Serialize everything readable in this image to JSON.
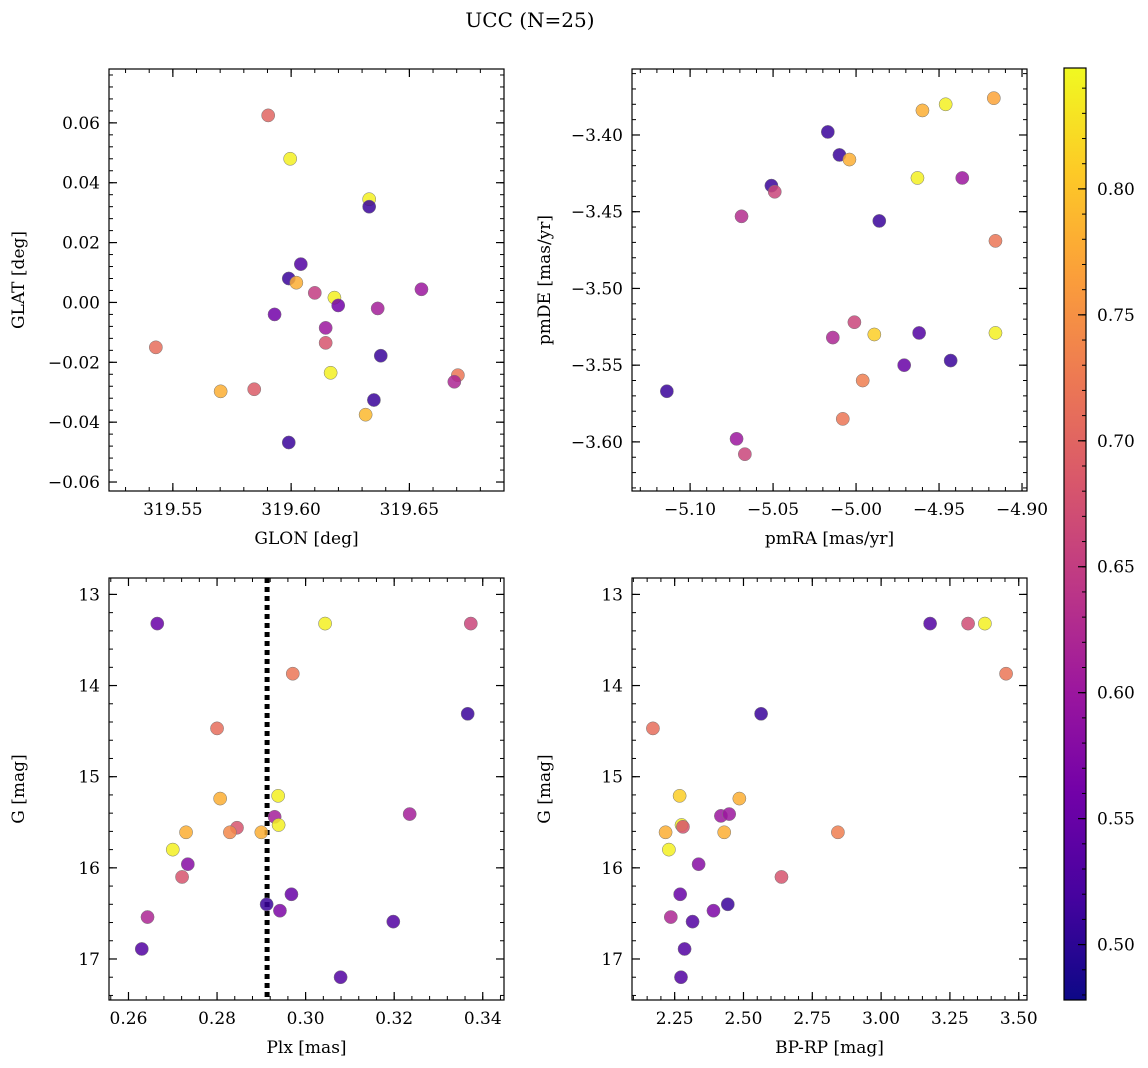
{
  "title": "UCC (N=25)",
  "colorbar": {
    "range": [
      0.478,
      0.848
    ],
    "ticks": [
      0.5,
      0.55,
      0.6,
      0.65,
      0.7,
      0.75,
      0.8
    ],
    "tick_labels": [
      "0.50",
      "0.55",
      "0.60",
      "0.65",
      "0.70",
      "0.75",
      "0.80"
    ],
    "colormap": "plasma",
    "colors": [
      "#0d0887",
      "#46039f",
      "#7201a8",
      "#9c179e",
      "#bd3786",
      "#d8576b",
      "#ed7953",
      "#fb9f3a",
      "#fdca26",
      "#f0f921"
    ]
  },
  "chart_data": [
    {
      "type": "scatter",
      "xlabel": "GLON [deg]",
      "ylabel": "GLAT [deg]",
      "xlim": [
        319.523,
        319.69
      ],
      "ylim": [
        -0.063,
        0.078
      ],
      "x_ticks": [
        319.55,
        319.6,
        319.65
      ],
      "x_tick_labels": [
        "319.55",
        "319.60",
        "319.65"
      ],
      "y_ticks": [
        -0.06,
        -0.04,
        -0.02,
        0.0,
        0.02,
        0.04,
        0.06
      ],
      "y_tick_labels": [
        "−0.06",
        "−0.04",
        "−0.02",
        "0.00",
        "0.02",
        "0.04",
        "0.06"
      ],
      "points": [
        {
          "x": 319.5903,
          "y": 0.0625,
          "c": 0.7
        },
        {
          "x": 319.5996,
          "y": 0.048,
          "c": 0.84
        },
        {
          "x": 319.633,
          "y": 0.0345,
          "c": 0.84
        },
        {
          "x": 319.633,
          "y": 0.032,
          "c": 0.51
        },
        {
          "x": 319.6041,
          "y": 0.0128,
          "c": 0.53
        },
        {
          "x": 319.599,
          "y": 0.008,
          "c": 0.51
        },
        {
          "x": 319.6022,
          "y": 0.0066,
          "c": 0.78
        },
        {
          "x": 319.61,
          "y": 0.0032,
          "c": 0.65
        },
        {
          "x": 319.6183,
          "y": 0.0016,
          "c": 0.84
        },
        {
          "x": 319.6551,
          "y": 0.0044,
          "c": 0.6
        },
        {
          "x": 319.6199,
          "y": -0.001,
          "c": 0.56
        },
        {
          "x": 319.6366,
          "y": -0.002,
          "c": 0.61
        },
        {
          "x": 319.593,
          "y": -0.004,
          "c": 0.56
        },
        {
          "x": 319.6146,
          "y": -0.0085,
          "c": 0.6
        },
        {
          "x": 319.6146,
          "y": -0.0135,
          "c": 0.68
        },
        {
          "x": 319.5428,
          "y": -0.015,
          "c": 0.71
        },
        {
          "x": 319.6379,
          "y": -0.0178,
          "c": 0.51
        },
        {
          "x": 319.6167,
          "y": -0.0235,
          "c": 0.84
        },
        {
          "x": 319.6705,
          "y": -0.0243,
          "c": 0.72
        },
        {
          "x": 319.669,
          "y": -0.0265,
          "c": 0.62
        },
        {
          "x": 319.5844,
          "y": -0.029,
          "c": 0.69
        },
        {
          "x": 319.5702,
          "y": -0.0297,
          "c": 0.78
        },
        {
          "x": 319.635,
          "y": -0.0326,
          "c": 0.51
        },
        {
          "x": 319.6315,
          "y": -0.0375,
          "c": 0.79
        },
        {
          "x": 319.599,
          "y": -0.0468,
          "c": 0.51
        }
      ]
    },
    {
      "type": "scatter",
      "xlabel": "pmRA [mas/yr]",
      "ylabel": "pmDE [mas/yr]",
      "xlim": [
        -5.135,
        -4.897
      ],
      "ylim": [
        -3.632,
        -3.357
      ],
      "x_ticks": [
        -5.1,
        -5.05,
        -5.0,
        -4.95,
        -4.9
      ],
      "x_tick_labels": [
        "−5.10",
        "−5.05",
        "−5.00",
        "−4.95",
        "−4.90"
      ],
      "y_ticks": [
        -3.6,
        -3.55,
        -3.5,
        -3.45,
        -3.4
      ],
      "y_tick_labels": [
        "−3.60",
        "−3.55",
        "−3.50",
        "−3.45",
        "−3.40"
      ],
      "points": [
        {
          "x": -4.917,
          "y": -3.376,
          "c": 0.77
        },
        {
          "x": -4.946,
          "y": -3.38,
          "c": 0.84
        },
        {
          "x": -4.96,
          "y": -3.384,
          "c": 0.78
        },
        {
          "x": -5.017,
          "y": -3.398,
          "c": 0.51
        },
        {
          "x": -5.01,
          "y": -3.413,
          "c": 0.51
        },
        {
          "x": -5.004,
          "y": -3.416,
          "c": 0.78
        },
        {
          "x": -4.963,
          "y": -3.428,
          "c": 0.84
        },
        {
          "x": -4.936,
          "y": -3.428,
          "c": 0.6
        },
        {
          "x": -5.051,
          "y": -3.433,
          "c": 0.51
        },
        {
          "x": -5.049,
          "y": -3.437,
          "c": 0.66
        },
        {
          "x": -5.069,
          "y": -3.453,
          "c": 0.63
        },
        {
          "x": -4.986,
          "y": -3.456,
          "c": 0.51
        },
        {
          "x": -4.916,
          "y": -3.469,
          "c": 0.72
        },
        {
          "x": -5.001,
          "y": -3.522,
          "c": 0.66
        },
        {
          "x": -4.962,
          "y": -3.529,
          "c": 0.53
        },
        {
          "x": -4.916,
          "y": -3.529,
          "c": 0.84
        },
        {
          "x": -4.989,
          "y": -3.53,
          "c": 0.81
        },
        {
          "x": -5.014,
          "y": -3.532,
          "c": 0.62
        },
        {
          "x": -4.943,
          "y": -3.547,
          "c": 0.51
        },
        {
          "x": -4.971,
          "y": -3.55,
          "c": 0.55
        },
        {
          "x": -4.996,
          "y": -3.56,
          "c": 0.73
        },
        {
          "x": -5.114,
          "y": -3.567,
          "c": 0.51
        },
        {
          "x": -5.008,
          "y": -3.585,
          "c": 0.72
        },
        {
          "x": -5.072,
          "y": -3.598,
          "c": 0.6
        },
        {
          "x": -5.067,
          "y": -3.608,
          "c": 0.66
        }
      ]
    },
    {
      "type": "scatter",
      "xlabel": "Plx [mas]",
      "ylabel": "G [mag]",
      "xlim": [
        0.2556,
        0.3448
      ],
      "ylim": [
        17.45,
        12.82
      ],
      "x_ticks": [
        0.26,
        0.28,
        0.3,
        0.32,
        0.34
      ],
      "x_tick_labels": [
        "0.26",
        "0.28",
        "0.30",
        "0.32",
        "0.34"
      ],
      "y_ticks": [
        13,
        14,
        15,
        16,
        17
      ],
      "y_tick_labels": [
        "13",
        "14",
        "15",
        "16",
        "17"
      ],
      "reference_line": {
        "x": 0.2913,
        "style": "dotted"
      },
      "points": [
        {
          "x": 0.2665,
          "y": 13.32,
          "c": 0.55
        },
        {
          "x": 0.3044,
          "y": 13.32,
          "c": 0.84
        },
        {
          "x": 0.3373,
          "y": 13.32,
          "c": 0.66
        },
        {
          "x": 0.2971,
          "y": 13.87,
          "c": 0.72
        },
        {
          "x": 0.3366,
          "y": 14.31,
          "c": 0.51
        },
        {
          "x": 0.28,
          "y": 14.47,
          "c": 0.71
        },
        {
          "x": 0.2807,
          "y": 15.24,
          "c": 0.78
        },
        {
          "x": 0.2938,
          "y": 15.21,
          "c": 0.84
        },
        {
          "x": 0.293,
          "y": 15.44,
          "c": 0.61
        },
        {
          "x": 0.3235,
          "y": 15.41,
          "c": 0.61
        },
        {
          "x": 0.2939,
          "y": 15.53,
          "c": 0.84
        },
        {
          "x": 0.273,
          "y": 15.61,
          "c": 0.78
        },
        {
          "x": 0.2845,
          "y": 15.56,
          "c": 0.68
        },
        {
          "x": 0.2829,
          "y": 15.61,
          "c": 0.74
        },
        {
          "x": 0.29,
          "y": 15.61,
          "c": 0.78
        },
        {
          "x": 0.27,
          "y": 15.8,
          "c": 0.84
        },
        {
          "x": 0.2734,
          "y": 15.96,
          "c": 0.58
        },
        {
          "x": 0.2721,
          "y": 16.1,
          "c": 0.68
        },
        {
          "x": 0.2968,
          "y": 16.29,
          "c": 0.55
        },
        {
          "x": 0.2912,
          "y": 16.4,
          "c": 0.51
        },
        {
          "x": 0.2942,
          "y": 16.47,
          "c": 0.57
        },
        {
          "x": 0.2643,
          "y": 16.54,
          "c": 0.62
        },
        {
          "x": 0.3198,
          "y": 16.59,
          "c": 0.53
        },
        {
          "x": 0.263,
          "y": 16.89,
          "c": 0.53
        },
        {
          "x": 0.3079,
          "y": 17.2,
          "c": 0.53
        }
      ]
    },
    {
      "type": "scatter",
      "xlabel": "BP-RP [mag]",
      "ylabel": "G [mag]",
      "xlim": [
        2.095,
        3.53
      ],
      "ylim": [
        17.45,
        12.82
      ],
      "x_ticks": [
        2.25,
        2.5,
        2.75,
        3.0,
        3.25,
        3.5
      ],
      "x_tick_labels": [
        "2.25",
        "2.50",
        "2.75",
        "3.00",
        "3.25",
        "3.50"
      ],
      "y_ticks": [
        13,
        14,
        15,
        16,
        17
      ],
      "y_tick_labels": [
        "13",
        "14",
        "15",
        "16",
        "17"
      ],
      "points": [
        {
          "x": 3.178,
          "y": 13.32,
          "c": 0.53
        },
        {
          "x": 3.316,
          "y": 13.32,
          "c": 0.67
        },
        {
          "x": 3.377,
          "y": 13.32,
          "c": 0.84
        },
        {
          "x": 3.454,
          "y": 13.87,
          "c": 0.72
        },
        {
          "x": 2.564,
          "y": 14.31,
          "c": 0.51
        },
        {
          "x": 2.171,
          "y": 14.47,
          "c": 0.71
        },
        {
          "x": 2.268,
          "y": 15.21,
          "c": 0.81
        },
        {
          "x": 2.485,
          "y": 15.24,
          "c": 0.78
        },
        {
          "x": 2.418,
          "y": 15.43,
          "c": 0.6
        },
        {
          "x": 2.448,
          "y": 15.41,
          "c": 0.6
        },
        {
          "x": 2.275,
          "y": 15.53,
          "c": 0.84
        },
        {
          "x": 2.28,
          "y": 15.55,
          "c": 0.68
        },
        {
          "x": 2.217,
          "y": 15.61,
          "c": 0.78
        },
        {
          "x": 2.43,
          "y": 15.61,
          "c": 0.78
        },
        {
          "x": 2.843,
          "y": 15.61,
          "c": 0.73
        },
        {
          "x": 2.229,
          "y": 15.8,
          "c": 0.84
        },
        {
          "x": 2.337,
          "y": 15.96,
          "c": 0.58
        },
        {
          "x": 2.638,
          "y": 16.1,
          "c": 0.68
        },
        {
          "x": 2.27,
          "y": 16.29,
          "c": 0.55
        },
        {
          "x": 2.443,
          "y": 16.4,
          "c": 0.51
        },
        {
          "x": 2.391,
          "y": 16.47,
          "c": 0.57
        },
        {
          "x": 2.236,
          "y": 16.54,
          "c": 0.62
        },
        {
          "x": 2.315,
          "y": 16.59,
          "c": 0.53
        },
        {
          "x": 2.286,
          "y": 16.89,
          "c": 0.53
        },
        {
          "x": 2.273,
          "y": 17.2,
          "c": 0.53
        }
      ]
    }
  ]
}
